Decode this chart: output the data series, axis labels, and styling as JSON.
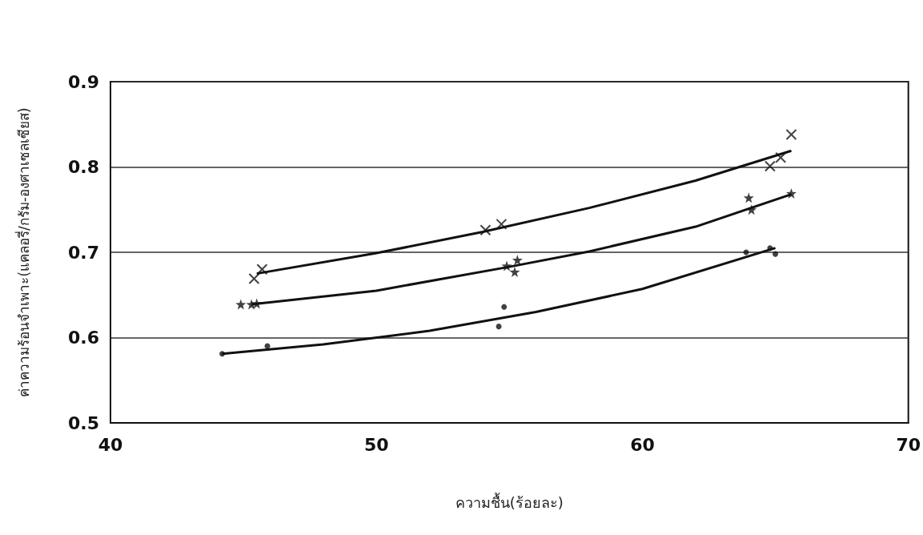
{
  "chart_data": {
    "type": "scatter",
    "xlabel": "ความชื้น(ร้อยละ)",
    "ylabel": "ค่าความร้อนจำเพาะ(แคลอรี่/กรัม-องศาเซลเซียส)",
    "xlim": [
      40,
      70
    ],
    "xticks": [
      40,
      50,
      60,
      70
    ],
    "ylim": [
      0.5,
      0.9
    ],
    "yticks": [
      0.5,
      0.6,
      0.7,
      0.8,
      0.9
    ],
    "grid": "y",
    "series": [
      {
        "type": "scatter",
        "marker": "cross",
        "color": "#111111",
        "x": [
          45.4,
          45.7,
          54.1,
          54.7,
          64.8,
          65.2,
          65.6
        ],
        "values": [
          0.669,
          0.68,
          0.726,
          0.733,
          0.801,
          0.811,
          0.838
        ]
      },
      {
        "type": "scatter",
        "marker": "star",
        "color": "#111111",
        "x": [
          44.9,
          45.3,
          45.5,
          54.9,
          55.3,
          55.2,
          64.0,
          64.1,
          65.6
        ],
        "values": [
          0.639,
          0.639,
          0.64,
          0.684,
          0.691,
          0.677,
          0.764,
          0.75,
          0.769
        ]
      },
      {
        "type": "scatter",
        "marker": "circle",
        "color": "#111111",
        "x": [
          44.2,
          45.9,
          54.8,
          54.6,
          63.9,
          64.8,
          65.0
        ],
        "values": [
          0.581,
          0.59,
          0.636,
          0.613,
          0.7,
          0.705,
          0.698
        ]
      },
      {
        "type": "line",
        "marker": "none",
        "color": "#111111",
        "x": [
          45.5,
          50,
          54,
          58,
          62,
          65.6
        ],
        "values": [
          0.675,
          0.699,
          0.724,
          0.752,
          0.784,
          0.819
        ]
      },
      {
        "type": "line",
        "marker": "none",
        "color": "#111111",
        "x": [
          45.3,
          50,
          55,
          58,
          62,
          65.6
        ],
        "values": [
          0.639,
          0.655,
          0.683,
          0.701,
          0.73,
          0.768
        ]
      },
      {
        "type": "line",
        "marker": "none",
        "color": "#111111",
        "x": [
          44.2,
          48,
          52,
          56,
          60,
          65.0
        ],
        "values": [
          0.581,
          0.592,
          0.608,
          0.63,
          0.657,
          0.705
        ]
      }
    ]
  }
}
